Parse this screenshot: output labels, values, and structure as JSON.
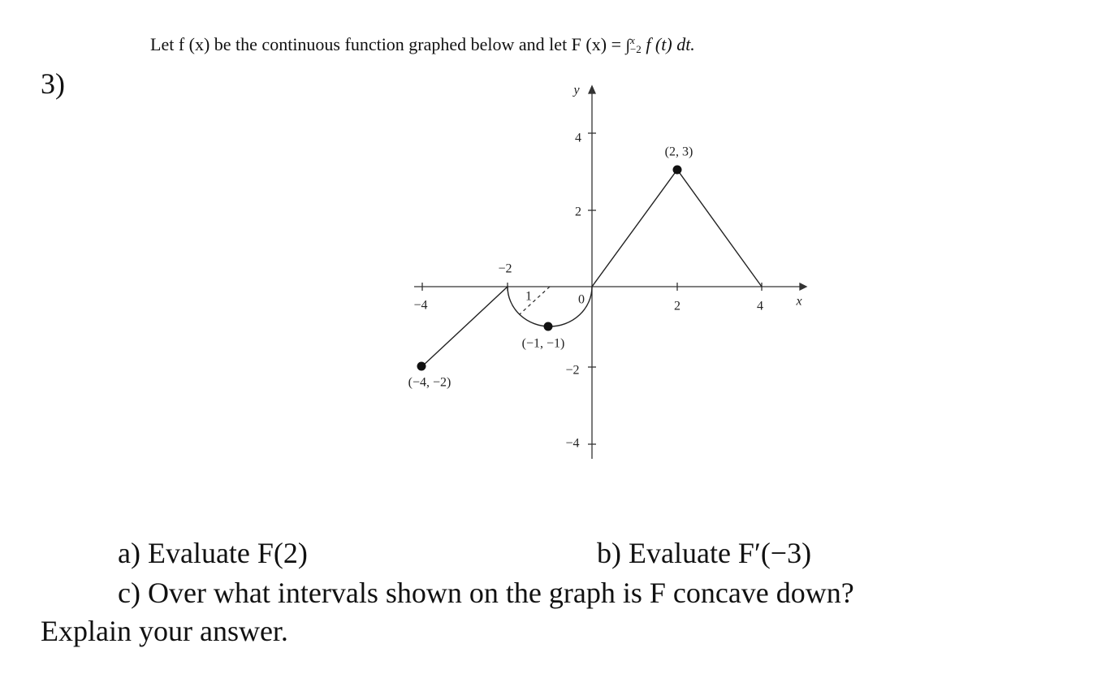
{
  "problem_number": "3)",
  "intro": {
    "text": "Let f (x) be the continuous function graphed below and let F (x) =",
    "integral": "∫",
    "upper": "x",
    "lower": "−2",
    "integrand": "f (t) dt."
  },
  "graph": {
    "axis_labels": {
      "x": "x",
      "y": "y"
    },
    "x_ticks": [
      "−4",
      "−2",
      "2",
      "4"
    ],
    "y_ticks": [
      "4",
      "2",
      "−2",
      "−4"
    ],
    "origin": "0",
    "radius_label": "1",
    "point_labels": [
      "(2, 3)",
      "(−1, −1)",
      "(−4, −2)"
    ]
  },
  "questions": {
    "a": "a) Evaluate F(2)",
    "b": "b) Evaluate F′(−3)",
    "c": "c) Over what intervals shown on the graph is F concave down?",
    "c_cont": "Explain your answer."
  }
}
